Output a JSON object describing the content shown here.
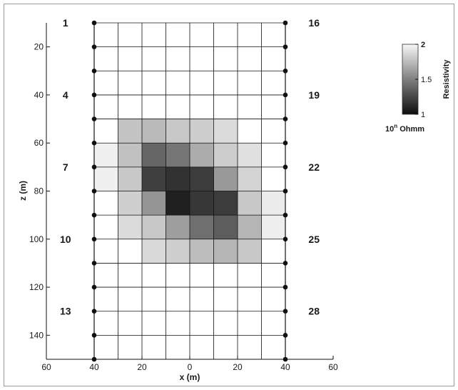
{
  "chart_data": {
    "type": "heatmap",
    "title": "",
    "xlabel": "x (m)",
    "ylabel": "z (m)",
    "x_tick_labels": [
      "60",
      "40",
      "20",
      "0",
      "20",
      "40",
      "60"
    ],
    "x_tick_values": [
      -60,
      -40,
      -20,
      0,
      20,
      40,
      60
    ],
    "xlim": [
      -60,
      60
    ],
    "y_tick_labels": [
      "20",
      "40",
      "60",
      "80",
      "100",
      "120",
      "140"
    ],
    "y_tick_values": [
      20,
      40,
      60,
      80,
      100,
      120,
      140
    ],
    "ylim": [
      10,
      150
    ],
    "y_axis_direction": "down",
    "grid": true,
    "grid_x_edges": [
      -40,
      -30,
      -20,
      -10,
      0,
      10,
      20,
      30,
      40
    ],
    "grid_z_edges": [
      10,
      20,
      30,
      40,
      50,
      60,
      70,
      80,
      90,
      100,
      110,
      120,
      130,
      140,
      150
    ],
    "colormap": "gray",
    "colorbar": {
      "label": "Resistivity",
      "unit_label": "10^n Ohmm",
      "unit_base": "10",
      "unit_exp": "n",
      "unit_rest": " Ohmm",
      "ticks": [
        "1",
        "1.5",
        "2"
      ],
      "tick_values": [
        1,
        1.5,
        2
      ],
      "range": [
        1,
        2
      ],
      "placement": "right"
    },
    "cells": [
      {
        "x": -25,
        "z": 55,
        "v": 1.78
      },
      {
        "x": -15,
        "z": 55,
        "v": 1.74
      },
      {
        "x": -5,
        "z": 55,
        "v": 1.8
      },
      {
        "x": 5,
        "z": 55,
        "v": 1.82
      },
      {
        "x": 15,
        "z": 55,
        "v": 1.88
      },
      {
        "x": -35,
        "z": 65,
        "v": 1.97
      },
      {
        "x": -25,
        "z": 65,
        "v": 1.77
      },
      {
        "x": -15,
        "z": 65,
        "v": 1.38
      },
      {
        "x": -5,
        "z": 65,
        "v": 1.45
      },
      {
        "x": 5,
        "z": 65,
        "v": 1.68
      },
      {
        "x": 15,
        "z": 65,
        "v": 1.82
      },
      {
        "x": 25,
        "z": 65,
        "v": 1.9
      },
      {
        "x": -35,
        "z": 75,
        "v": 1.97
      },
      {
        "x": -25,
        "z": 75,
        "v": 1.8
      },
      {
        "x": -15,
        "z": 75,
        "v": 1.22
      },
      {
        "x": -5,
        "z": 75,
        "v": 1.16
      },
      {
        "x": 5,
        "z": 75,
        "v": 1.2
      },
      {
        "x": 15,
        "z": 75,
        "v": 1.6
      },
      {
        "x": 25,
        "z": 75,
        "v": 1.85
      },
      {
        "x": -25,
        "z": 85,
        "v": 1.83
      },
      {
        "x": -15,
        "z": 85,
        "v": 1.58
      },
      {
        "x": -5,
        "z": 85,
        "v": 1.08
      },
      {
        "x": 5,
        "z": 85,
        "v": 1.18
      },
      {
        "x": 15,
        "z": 85,
        "v": 1.2
      },
      {
        "x": 25,
        "z": 85,
        "v": 1.8
      },
      {
        "x": 35,
        "z": 85,
        "v": 1.95
      },
      {
        "x": -25,
        "z": 95,
        "v": 1.88
      },
      {
        "x": -15,
        "z": 95,
        "v": 1.8
      },
      {
        "x": -5,
        "z": 95,
        "v": 1.62
      },
      {
        "x": 5,
        "z": 95,
        "v": 1.42
      },
      {
        "x": 15,
        "z": 95,
        "v": 1.34
      },
      {
        "x": 25,
        "z": 95,
        "v": 1.72
      },
      {
        "x": 35,
        "z": 95,
        "v": 1.96
      },
      {
        "x": -15,
        "z": 105,
        "v": 1.87
      },
      {
        "x": -5,
        "z": 105,
        "v": 1.83
      },
      {
        "x": 5,
        "z": 105,
        "v": 1.75
      },
      {
        "x": 15,
        "z": 105,
        "v": 1.72
      },
      {
        "x": 25,
        "z": 105,
        "v": 1.8
      }
    ],
    "electrodes": {
      "x_left": -40,
      "x_right": 40,
      "z_positions": [
        10,
        20,
        30,
        40,
        50,
        60,
        70,
        80,
        90,
        100,
        110,
        120,
        130,
        140,
        150
      ]
    },
    "electrode_labels": [
      {
        "text": "1",
        "x": -52,
        "z": 10
      },
      {
        "text": "4",
        "x": -52,
        "z": 40
      },
      {
        "text": "7",
        "x": -52,
        "z": 70
      },
      {
        "text": "10",
        "x": -52,
        "z": 100
      },
      {
        "text": "13",
        "x": -52,
        "z": 130
      },
      {
        "text": "16",
        "x": 52,
        "z": 10
      },
      {
        "text": "19",
        "x": 52,
        "z": 40
      },
      {
        "text": "22",
        "x": 52,
        "z": 70
      },
      {
        "text": "25",
        "x": 52,
        "z": 100
      },
      {
        "text": "28",
        "x": 52,
        "z": 130
      }
    ]
  }
}
